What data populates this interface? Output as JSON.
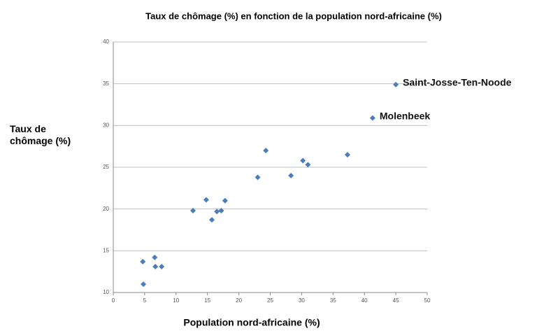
{
  "chart_data": {
    "type": "scatter",
    "title": "Taux de chômage (%) en fonction de la population nord-africaine (%)",
    "x_label": "Population nord-africaine (%)",
    "y_label": "Taux de chômage (%)",
    "x": [
      4.7,
      4.8,
      6.6,
      6.7,
      7.7,
      12.7,
      14.8,
      15.7,
      16.5,
      17.2,
      17.8,
      23.0,
      24.3,
      28.3,
      30.2,
      31.0,
      37.3,
      41.3,
      45.0
    ],
    "values": [
      13.7,
      11.0,
      14.2,
      13.1,
      13.1,
      19.8,
      21.1,
      18.7,
      19.7,
      19.8,
      21.0,
      23.8,
      27.0,
      24.0,
      25.8,
      25.3,
      26.5,
      30.9,
      34.9
    ],
    "color": "#4a7ebb",
    "annotations": [
      "Saint-Josse-Ten-Noode",
      "Molenbeek"
    ],
    "xlim": [
      0,
      50
    ],
    "xticks": [
      0,
      5,
      10,
      15,
      20,
      25,
      30,
      35,
      40,
      45,
      50
    ],
    "ylim": [
      10,
      40
    ],
    "yticks": [
      10,
      15,
      20,
      25,
      30,
      35,
      40
    ],
    "grid": true
  }
}
